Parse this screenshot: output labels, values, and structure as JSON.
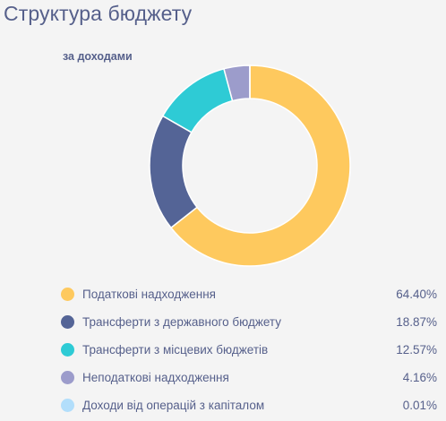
{
  "header": {
    "title": "Структура бюджету",
    "subtitle": "за доходами"
  },
  "chart_data": {
    "type": "pie",
    "categories": [
      "Податкові надходження",
      "Трансферти з державного бюджету",
      "Трансферти з місцевих бюджетів",
      "Неподаткові надходження",
      "Доходи від операцій з капіталом"
    ],
    "values": [
      64.4,
      18.87,
      12.57,
      4.16,
      0.01
    ],
    "value_labels": [
      "64.40%",
      "18.87%",
      "12.57%",
      "4.16%",
      "0.01%"
    ],
    "colors": [
      "#fec95e",
      "#546496",
      "#2ecbd5",
      "#9c9ccb",
      "#b2defb"
    ],
    "unit": "%",
    "legend_position": "bottom"
  }
}
